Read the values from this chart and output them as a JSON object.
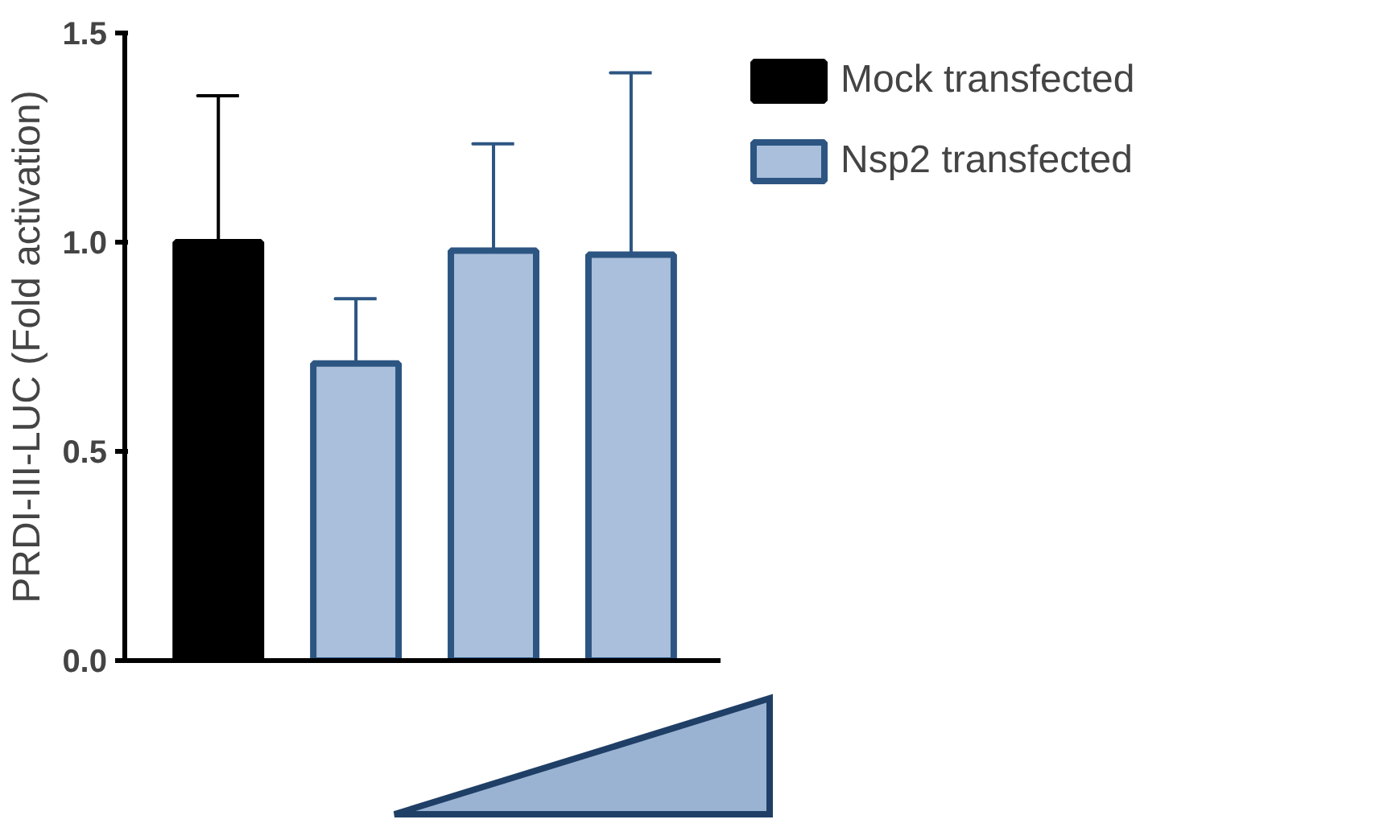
{
  "chart_data": {
    "type": "bar",
    "ylabel": "PRDI-III-LUC (Fold activation)",
    "categories": [
      null,
      null,
      null,
      null
    ],
    "series": [
      {
        "name": "Mock transfected",
        "color": "#000000",
        "values": [
          1.0,
          null,
          null,
          null
        ],
        "errors": [
          [
            1.0,
            1.35
          ],
          null,
          null,
          null
        ]
      },
      {
        "name": "Nsp2 transfected",
        "color": "#a9bfdb",
        "values": [
          null,
          0.71,
          0.98,
          0.97
        ],
        "errors": [
          null,
          [
            0.71,
            0.865
          ],
          [
            0.98,
            1.235
          ],
          [
            0.97,
            1.405
          ]
        ]
      }
    ],
    "ylim": [
      0,
      1.5
    ],
    "yticks": [
      {
        "value": 0,
        "label": "0.0"
      },
      {
        "value": 0.5,
        "label": "0.5"
      },
      {
        "value": 1,
        "label": "1.0"
      },
      {
        "value": 1.5,
        "label": "1.5"
      }
    ],
    "grid": false,
    "legend": "right"
  }
}
